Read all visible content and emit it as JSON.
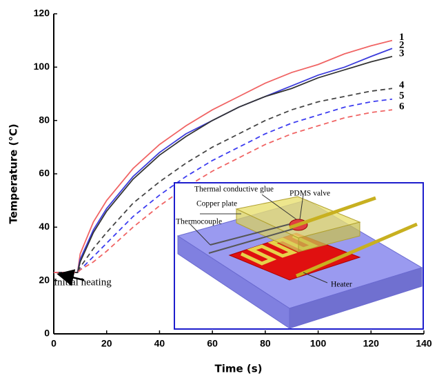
{
  "chart_data": {
    "type": "line",
    "x_label": "Time (s)",
    "y_label": "Temperature (°C)",
    "xlim": [
      0,
      140
    ],
    "ylim": [
      0,
      120
    ],
    "xticks": [
      0,
      20,
      40,
      60,
      80,
      100,
      120,
      140
    ],
    "yticks": [
      0,
      20,
      40,
      60,
      80,
      100,
      120
    ],
    "x": [
      0,
      9,
      10,
      15,
      20,
      30,
      40,
      50,
      60,
      70,
      80,
      90,
      100,
      110,
      120,
      128
    ],
    "series": [
      {
        "name": "1",
        "color": "#f06464",
        "dashed": false,
        "values": [
          23,
          23,
          30,
          42,
          50,
          62,
          71,
          78,
          84,
          89,
          94,
          98,
          101,
          105,
          108,
          110
        ]
      },
      {
        "name": "2",
        "color": "#3c3cdc",
        "dashed": false,
        "values": [
          23,
          23,
          28,
          39,
          47,
          59,
          68,
          75,
          80,
          85,
          89,
          93,
          97,
          100,
          104,
          107
        ]
      },
      {
        "name": "3",
        "color": "#333333",
        "dashed": false,
        "values": [
          23,
          23,
          27,
          38,
          46,
          58,
          67,
          74,
          80,
          85,
          89,
          92,
          96,
          99,
          102,
          104
        ]
      },
      {
        "name": "4",
        "color": "#444444",
        "dashed": true,
        "values": [
          23,
          23,
          25,
          32,
          38,
          49,
          57,
          64,
          70,
          75,
          80,
          84,
          87,
          89,
          91,
          92
        ]
      },
      {
        "name": "5",
        "color": "#3c3cf0",
        "dashed": true,
        "values": [
          23,
          23,
          24,
          29,
          34,
          44,
          52,
          59,
          65,
          70,
          75,
          79,
          82,
          85,
          87,
          88
        ]
      },
      {
        "name": "6",
        "color": "#f06464",
        "dashed": true,
        "values": [
          23,
          23,
          24,
          27,
          31,
          40,
          48,
          55,
          61,
          66,
          71,
          75,
          78,
          81,
          83,
          84
        ]
      }
    ],
    "annotation": "Initial heating",
    "inset_labels": {
      "glue": "Thermal conductive glue",
      "valve": "PDMS valve",
      "plate": "Copper plate",
      "thermocouple": "Thermocouple",
      "heater": "Heater"
    }
  }
}
